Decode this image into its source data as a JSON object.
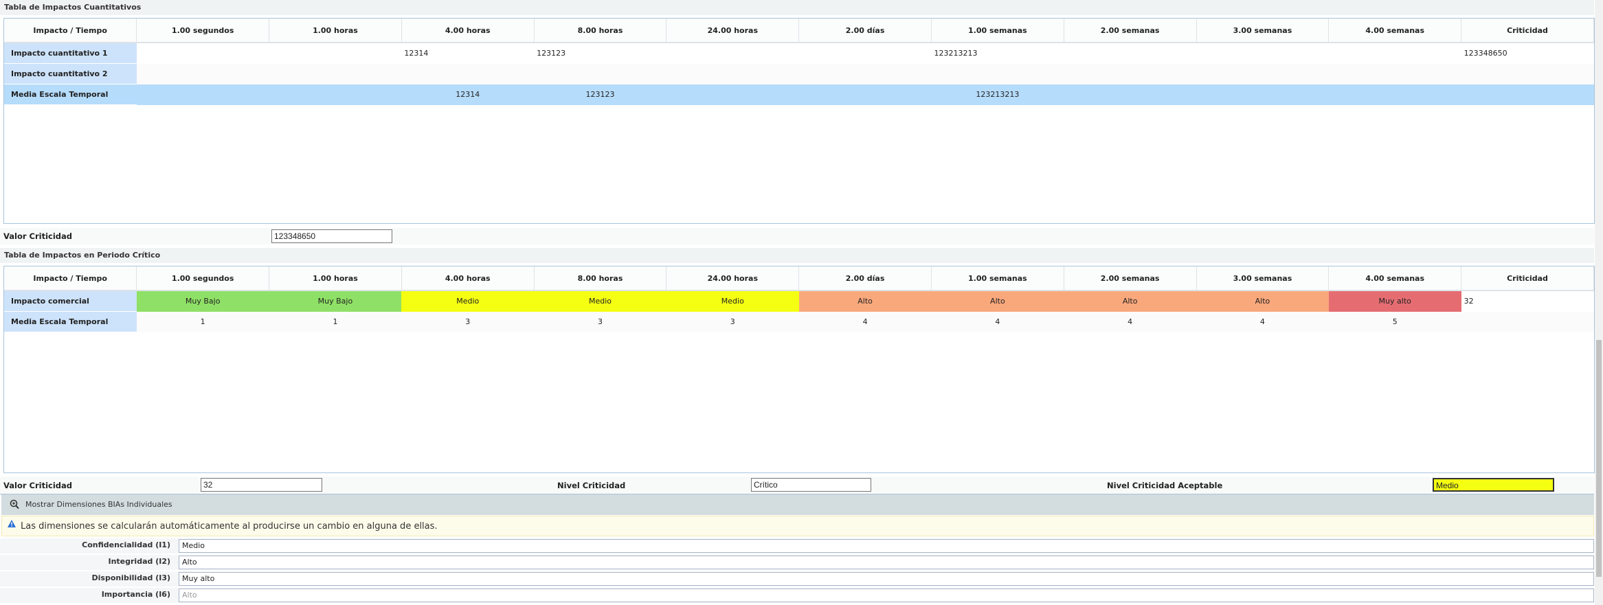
{
  "table1": {
    "title": "Tabla de Impactos Cuantitativos",
    "columns": [
      "Impacto / Tiempo",
      "1.00 segundos",
      "1.00 horas",
      "4.00 horas",
      "8.00 horas",
      "24.00 horas",
      "2.00 días",
      "1.00 semanas",
      "2.00 semanas",
      "3.00 semanas",
      "4.00 semanas",
      "Criticidad"
    ],
    "rows": [
      {
        "label": "Impacto cuantitativo 1",
        "cells": [
          "",
          "",
          "12314",
          "123123",
          "",
          "",
          "123213213",
          "",
          "",
          "",
          "123348650"
        ]
      },
      {
        "label": "Impacto cuantitativo 2",
        "cells": [
          "",
          "",
          "",
          "",
          "",
          "",
          "",
          "",
          "",
          "",
          ""
        ]
      },
      {
        "label": "Media Escala Temporal",
        "cells": [
          "",
          "",
          "12314",
          "123123",
          "",
          "",
          "123213213",
          "",
          "",
          "",
          ""
        ]
      }
    ],
    "valor_label": "Valor Criticidad",
    "valor_value": "123348650"
  },
  "table2": {
    "title": "Tabla de Impactos en Periodo Crítico",
    "columns": [
      "Impacto / Tiempo",
      "1.00 segundos",
      "1.00 horas",
      "4.00 horas",
      "8.00 horas",
      "24.00 horas",
      "2.00 días",
      "1.00 semanas",
      "2.00 semanas",
      "3.00 semanas",
      "4.00 semanas",
      "Criticidad"
    ],
    "rows": [
      {
        "label": "Impacto comercial",
        "cells": [
          "Muy Bajo",
          "Muy Bajo",
          "Medio",
          "Medio",
          "Medio",
          "Alto",
          "Alto",
          "Alto",
          "Alto",
          "Muy alto",
          "32"
        ]
      },
      {
        "label": "Media Escala Temporal",
        "cells": [
          "1",
          "1",
          "3",
          "3",
          "3",
          "4",
          "4",
          "4",
          "4",
          "5",
          ""
        ]
      }
    ],
    "level_colors": {
      "Muy Bajo": "#8fe066",
      "Medio": "#f5ff12",
      "Alto": "#f9a87c",
      "Muy alto": "#e56d72"
    },
    "valor_label": "Valor Criticidad",
    "valor_value": "32",
    "nivel_label": "Nivel Criticidad",
    "nivel_value": "Crítico",
    "aceptable_label": "Nivel Criticidad Aceptable",
    "aceptable_value": "Medio"
  },
  "dimensions": {
    "toggle_label": "Mostrar Dimensiones BIAs Individuales",
    "toggle_icon": "zoom-in-icon",
    "alert_icon": "warning-icon",
    "alert_text": "Las dimensiones se calcularán automáticamente al producirse un cambio en alguna de ellas.",
    "fields": [
      {
        "label": "Confidencialidad (I1)",
        "value": "Medio"
      },
      {
        "label": "Integridad (I2)",
        "value": "Alto"
      },
      {
        "label": "Disponibilidad (I3)",
        "value": "Muy alto"
      },
      {
        "label": "Importancia (I6)",
        "value": "Alto",
        "disabled": true
      }
    ]
  }
}
